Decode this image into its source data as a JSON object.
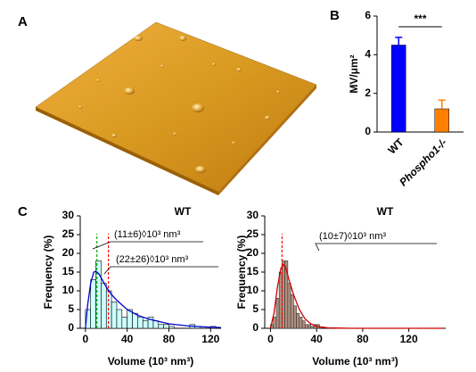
{
  "panel_labels": {
    "a": "A",
    "b": "B",
    "c": "C"
  },
  "chart_data": [
    {
      "type": "bar",
      "categories": [
        "WT",
        "Phospho1-/-"
      ],
      "values": [
        4.5,
        1.2
      ],
      "errors": [
        0.4,
        0.45
      ],
      "colors": [
        "#0000ff",
        "#ff8000"
      ],
      "ylabel": "MV/μm²",
      "ylim": [
        0,
        6
      ],
      "yticks": [
        0,
        2,
        4,
        6
      ],
      "significance": "***"
    },
    {
      "type": "histogram",
      "title": "WT",
      "xlabel": "Volume (10³ nm³)",
      "ylabel": "Frequency (%)",
      "bins": [
        0,
        5,
        10,
        15,
        20,
        25,
        30,
        35,
        40,
        45,
        50,
        55,
        60,
        65,
        70,
        75,
        80,
        85,
        90,
        95,
        100,
        105,
        110,
        115,
        120,
        125,
        130
      ],
      "counts": [
        5,
        13,
        18,
        12,
        10,
        7,
        5,
        3,
        5,
        4,
        3,
        2,
        3,
        2,
        1,
        1,
        0.5,
        0,
        0,
        0,
        1,
        0.5,
        0,
        0,
        0.5,
        0
      ],
      "color": "#ccffff",
      "edgecolor": "#000000",
      "fit": {
        "color": "#0000cc",
        "x": [
          0,
          2,
          5,
          8,
          10,
          13,
          16,
          20,
          25,
          30,
          40,
          50,
          60,
          80,
          100,
          120,
          130
        ],
        "y": [
          0,
          6,
          12,
          15,
          15.2,
          14.5,
          13,
          11,
          9,
          7.5,
          5,
          3.5,
          2.5,
          1.2,
          0.6,
          0.3,
          0.2
        ]
      },
      "markers": [
        {
          "x": 11,
          "color": "#00aa00"
        },
        {
          "x": 22,
          "color": "#ff0000"
        }
      ],
      "annotations": [
        "(11±6)◊10³ nm³",
        "(22±26)◊10³ nm³"
      ],
      "xlim": [
        -5,
        130
      ],
      "xticks": [
        0,
        40,
        80,
        120
      ],
      "ylim": [
        0,
        30
      ],
      "yticks": [
        0,
        5,
        10,
        15,
        20,
        25,
        30
      ]
    },
    {
      "type": "histogram",
      "title": "WT",
      "xlabel": "Volume (10³ nm³)",
      "ylabel": "Frequency (%)",
      "bins": [
        0,
        2.5,
        5,
        7.5,
        10,
        12.5,
        15,
        17.5,
        20,
        22.5,
        25,
        27.5,
        30,
        32.5,
        35,
        37.5,
        40,
        42.5
      ],
      "counts": [
        1,
        3,
        8,
        15,
        18,
        18,
        12,
        9,
        6,
        4,
        3,
        2,
        1,
        1,
        0.5,
        1,
        1
      ],
      "color": "#b09080",
      "edgecolor": "#333333",
      "fit": {
        "color": "#cc0000",
        "x": [
          0,
          3,
          6,
          9,
          11,
          13,
          16,
          20,
          25,
          30,
          35,
          40,
          50,
          70,
          100,
          150
        ],
        "y": [
          0,
          4,
          11,
          16,
          17,
          16.5,
          13,
          9,
          5,
          2.5,
          1.2,
          0.5,
          0.1,
          0,
          0,
          0
        ]
      },
      "markers": [
        {
          "x": 10,
          "color": "#ff0000"
        }
      ],
      "annotations": [
        "(10±7)◊10³ nm³"
      ],
      "xlim": [
        -5,
        152
      ],
      "xticks": [
        0,
        40,
        80,
        120
      ],
      "ylim": [
        0,
        30
      ],
      "yticks": [
        0,
        5,
        10,
        15,
        20,
        25,
        30
      ]
    }
  ]
}
